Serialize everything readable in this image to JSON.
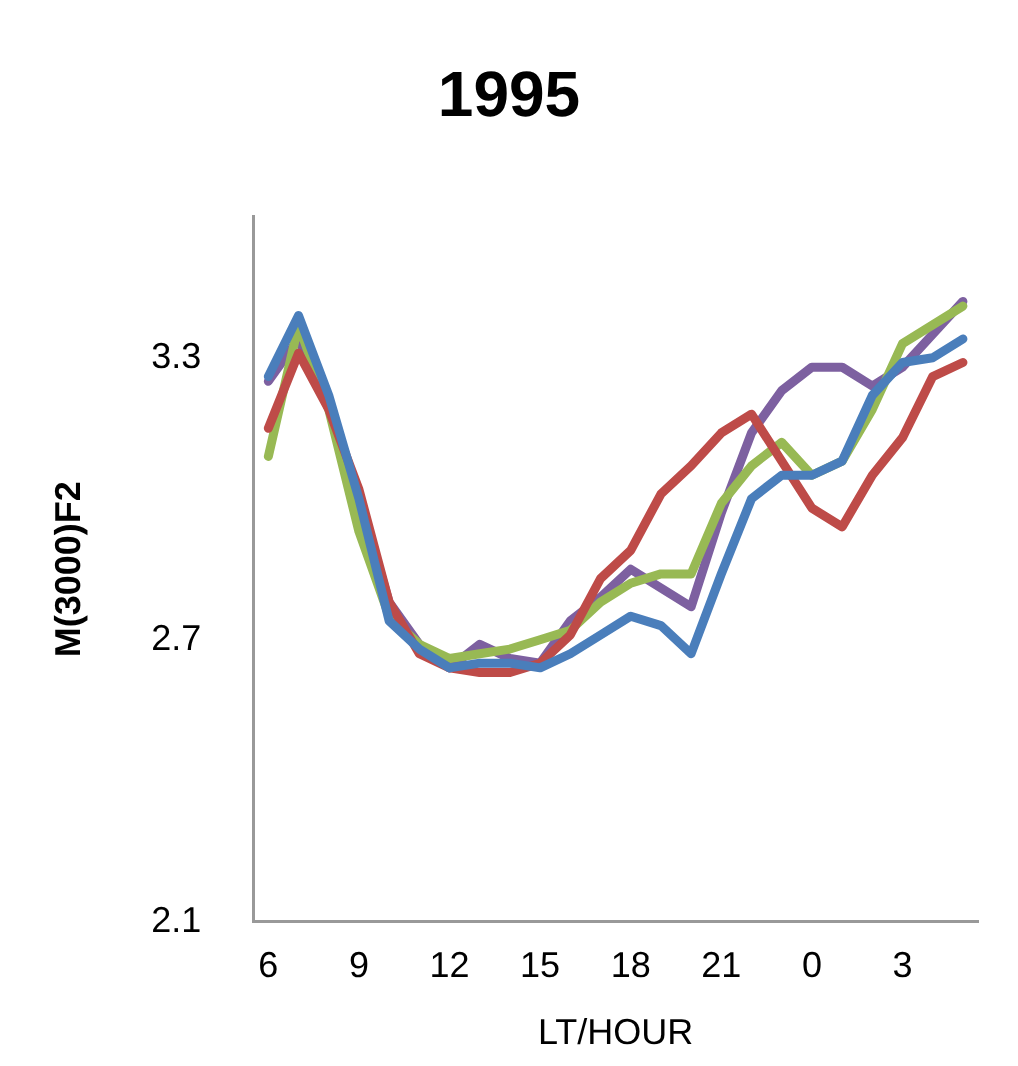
{
  "chart_data": {
    "type": "line",
    "title": "1995",
    "xlabel": "LT/HOUR",
    "ylabel": "M(3000)F2",
    "categories": [
      "6",
      null,
      null,
      "9",
      null,
      null,
      "12",
      null,
      null,
      "15",
      null,
      null,
      "18",
      null,
      null,
      "21",
      null,
      null,
      "0",
      null,
      null,
      "3",
      null,
      null
    ],
    "ylim": [
      2.1,
      3.6
    ],
    "yticks": [
      2.1,
      2.7,
      3.3
    ],
    "grid": false,
    "legend": false,
    "marker": "none",
    "line_style": "solid",
    "series": [
      {
        "color": "#4a7ebb",
        "values": [
          3.26,
          3.39,
          3.22,
          3.0,
          2.74,
          2.68,
          2.64,
          2.65,
          2.65,
          2.64,
          2.67,
          2.71,
          2.75,
          2.73,
          2.67,
          2.84,
          3.0,
          3.05,
          3.05,
          3.08,
          3.22,
          3.29,
          3.3,
          3.34
        ]
      },
      {
        "color": "#be4b48",
        "values": [
          3.15,
          3.31,
          3.19,
          3.02,
          2.78,
          2.67,
          2.64,
          2.63,
          2.63,
          2.65,
          2.71,
          2.83,
          2.89,
          3.01,
          3.07,
          3.14,
          3.18,
          3.08,
          2.98,
          2.94,
          3.05,
          3.13,
          3.26,
          3.29
        ]
      },
      {
        "color": "#98b954",
        "values": [
          3.09,
          3.37,
          3.19,
          2.93,
          2.75,
          2.69,
          2.66,
          2.67,
          2.68,
          2.7,
          2.72,
          2.78,
          2.82,
          2.84,
          2.84,
          2.99,
          3.07,
          3.12,
          3.05,
          3.08,
          3.19,
          3.33,
          3.37,
          3.41
        ]
      },
      {
        "color": "#7d60a0",
        "values": [
          3.25,
          3.34,
          3.2,
          3.0,
          2.78,
          2.69,
          2.64,
          2.69,
          2.66,
          2.65,
          2.74,
          2.79,
          2.85,
          2.81,
          2.77,
          2.97,
          3.14,
          3.23,
          3.28,
          3.28,
          3.24,
          3.28,
          3.35,
          3.42
        ]
      }
    ]
  }
}
